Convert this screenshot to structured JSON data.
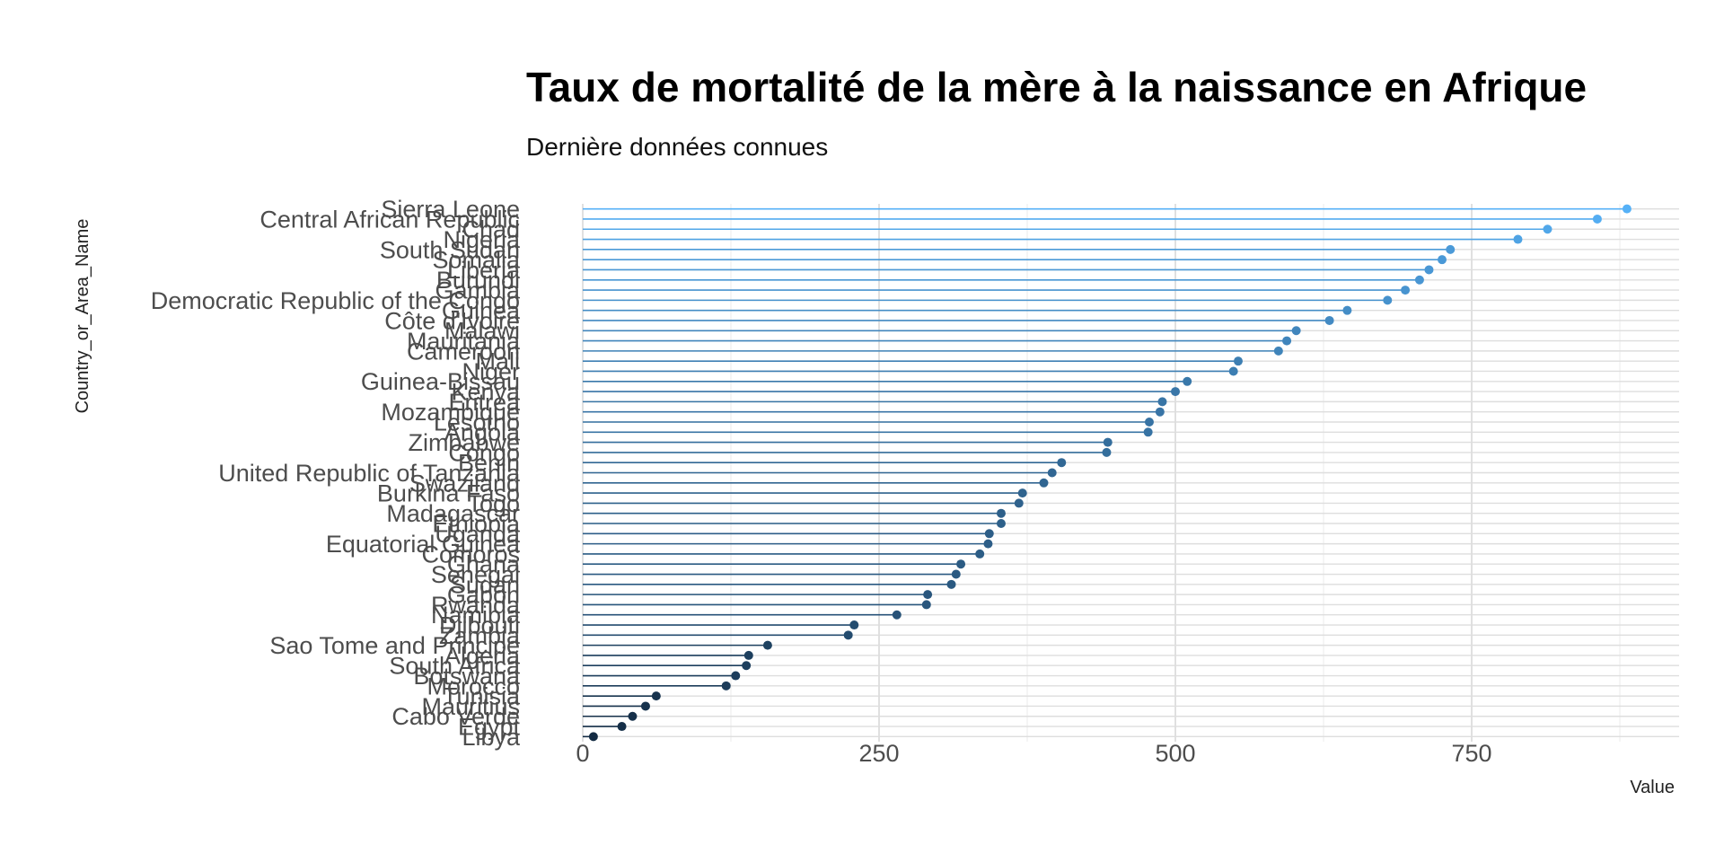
{
  "chart_data": {
    "type": "lollipop",
    "title": "Taux de mortalité de la mère à la naissance en Afrique",
    "subtitle": "Dernière données connues",
    "xlabel": "Value",
    "ylabel": "Country_or_Area_Name",
    "xlim": [
      0,
      925
    ],
    "x_ticks": [
      0,
      250,
      500,
      750
    ],
    "x_tick_labels": [
      "0",
      "250",
      "500",
      "750"
    ],
    "grid": true,
    "color_low": "#132b43",
    "color_high": "#56b1f7",
    "categories": [
      "Sierra Leone",
      "Central African Republic",
      "Chad",
      "Nigeria",
      "South Sudan",
      "Somalia",
      "Liberia",
      "Burundi",
      "Gambia",
      "Democratic Republic of the Congo",
      "Guinea",
      "Côte d'Ivoire",
      "Malawi",
      "Mauritania",
      "Cameroon",
      "Mali",
      "Niger",
      "Guinea-Bissau",
      "Kenya",
      "Eritrea",
      "Mozambique",
      "Lesotho",
      "Angola",
      "Zimbabwe",
      "Congo",
      "Benin",
      "United Republic of Tanzania",
      "Swaziland",
      "Burkina Faso",
      "Togo",
      "Madagascar",
      "Ethiopia",
      "Uganda",
      "Equatorial Guinea",
      "Comoros",
      "Ghana",
      "Senegal",
      "Sudan",
      "Gabon",
      "Rwanda",
      "Namibia",
      "Djibouti",
      "Zambia",
      "Sao Tome and Principe",
      "Algeria",
      "South Africa",
      "Botswana",
      "Morocco",
      "Tunisia",
      "Mauritius",
      "Cabo Verde",
      "Egypt",
      "Libya"
    ],
    "values": [
      881,
      856,
      814,
      789,
      732,
      725,
      714,
      706,
      694,
      679,
      645,
      630,
      602,
      594,
      587,
      553,
      549,
      510,
      500,
      489,
      487,
      478,
      477,
      443,
      442,
      404,
      396,
      389,
      371,
      368,
      353,
      353,
      343,
      342,
      335,
      319,
      315,
      311,
      291,
      290,
      265,
      229,
      224,
      156,
      140,
      138,
      129,
      121,
      62,
      53,
      42,
      33,
      9
    ]
  }
}
